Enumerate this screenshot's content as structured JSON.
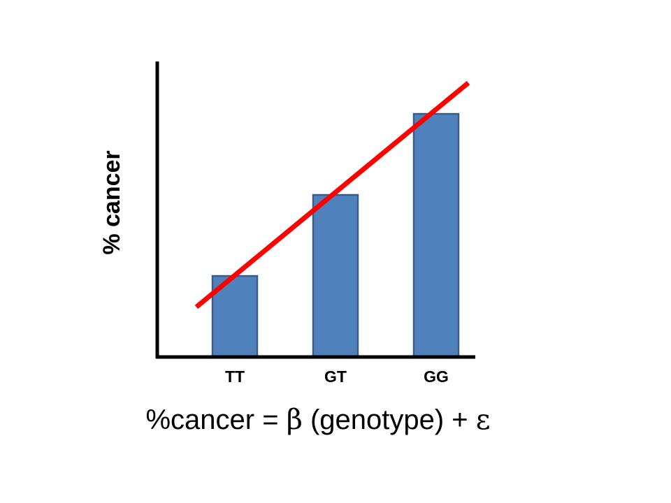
{
  "chart_data": {
    "type": "bar",
    "categories": [
      "TT",
      "GT",
      "GG"
    ],
    "values": [
      1,
      2,
      3
    ],
    "ylabel": "% cancer",
    "xlabel": "",
    "grid": false,
    "colors": {
      "bar_fill": "#4f81bd",
      "bar_stroke": "#385d8a",
      "trend_line": "#ff0000",
      "axis": "#000000"
    },
    "trend_line": {
      "description_values": [
        0.6,
        3.4
      ]
    }
  },
  "equation": {
    "lhs": "%cancer = ",
    "beta": "β",
    "middle": " (genotype) + ",
    "epsilon": "ε"
  }
}
